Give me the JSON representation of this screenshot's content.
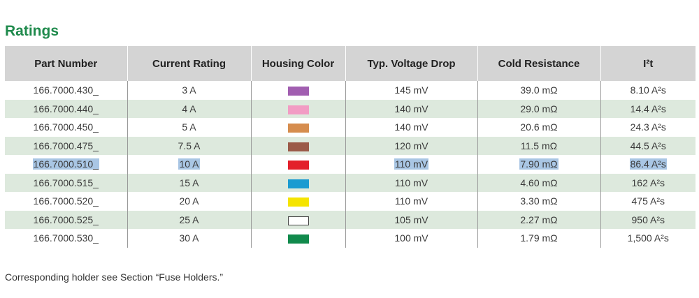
{
  "title": "Ratings",
  "table": {
    "headers": [
      "Part Number",
      "Current Rating",
      "Housing Color",
      "Typ. Voltage Drop",
      "Cold Resistance",
      "I²t"
    ],
    "rows": [
      {
        "part": "166.7000.430_",
        "current": "3 A",
        "color": "#a15eb0",
        "voltage": "145 mV",
        "resistance": "39.0 mΩ",
        "i2t": "8.10 A²s"
      },
      {
        "part": "166.7000.440_",
        "current": "4 A",
        "color": "#f29cc4",
        "voltage": "140 mV",
        "resistance": "29.0 mΩ",
        "i2t": "14.4 A²s"
      },
      {
        "part": "166.7000.450_",
        "current": "5 A",
        "color": "#d68d4e",
        "voltage": "140 mV",
        "resistance": "20.6 mΩ",
        "i2t": "24.3 A²s"
      },
      {
        "part": "166.7000.475_",
        "current": "7.5 A",
        "color": "#9b5a48",
        "voltage": "120 mV",
        "resistance": "11.5 mΩ",
        "i2t": "44.5 A²s"
      },
      {
        "part": "166.7000.510_",
        "current": "10 A",
        "color": "#e3202b",
        "voltage": "110 mV",
        "resistance": "7.90 mΩ",
        "i2t": "86.4 A²s",
        "highlighted": true
      },
      {
        "part": "166.7000.515_",
        "current": "15 A",
        "color": "#1b9bd1",
        "voltage": "110 mV",
        "resistance": "4.60 mΩ",
        "i2t": "162 A²s"
      },
      {
        "part": "166.7000.520_",
        "current": "20 A",
        "color": "#f5e400",
        "voltage": "110 mV",
        "resistance": "3.30 mΩ",
        "i2t": "475 A²s"
      },
      {
        "part": "166.7000.525_",
        "current": "25 A",
        "color": "#ffffff",
        "voltage": "105 mV",
        "resistance": "2.27 mΩ",
        "i2t": "950 A²s"
      },
      {
        "part": "166.7000.530_",
        "current": "30 A",
        "color": "#118a4c",
        "voltage": "100 mV",
        "resistance": "1.79 mΩ",
        "i2t": "1,500 A²s"
      }
    ]
  },
  "note": "Corresponding holder see Section “Fuse Holders.”"
}
